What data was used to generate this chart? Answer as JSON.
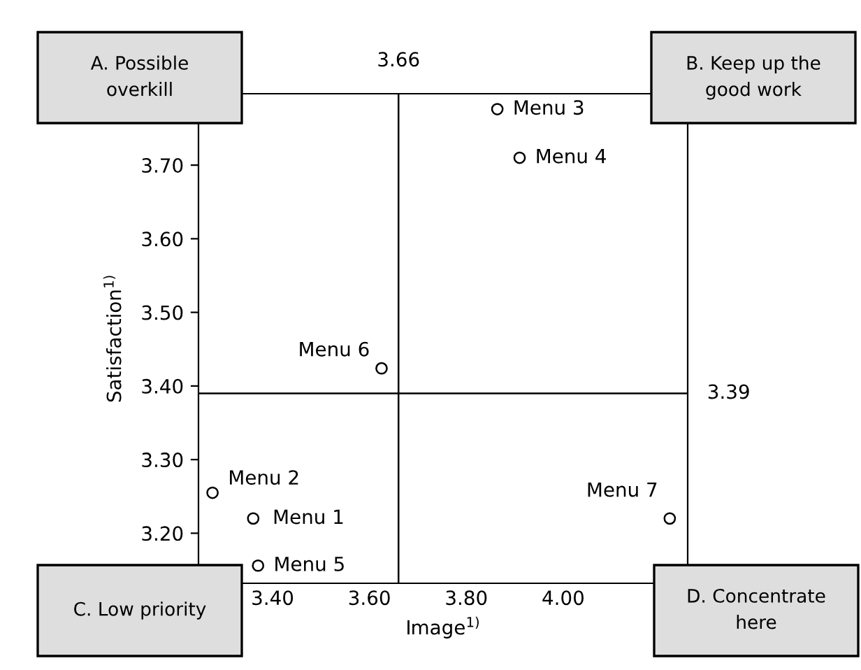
{
  "chart_data": {
    "type": "scatter",
    "xlabel": "Image$^{1)}$",
    "ylabel": "Satisfaction$^{1)}$",
    "x": [
      3.36,
      3.276,
      3.864,
      3.91,
      3.37,
      3.625,
      4.22
    ],
    "values": [
      3.22,
      3.255,
      3.776,
      3.71,
      3.156,
      3.424,
      3.22
    ],
    "color": "#000000",
    "marker": "circle",
    "grid": false,
    "xlim": [
      3.247,
      4.257
    ],
    "ylim": [
      3.132,
      3.797
    ],
    "xticks": [
      {
        "value": 3.4,
        "label": "3.40"
      },
      {
        "value": 3.6,
        "label": "3.60"
      },
      {
        "value": 3.8,
        "label": "3.80"
      },
      {
        "value": 4.0,
        "label": "4.00"
      }
    ],
    "yticks": [
      {
        "value": 3.2,
        "label": "3.20"
      },
      {
        "value": 3.3,
        "label": "3.30"
      },
      {
        "value": 3.4,
        "label": "3.40"
      },
      {
        "value": 3.5,
        "label": "3.50"
      },
      {
        "value": 3.6,
        "label": "3.60"
      },
      {
        "value": 3.7,
        "label": "3.70"
      }
    ],
    "ref_lines": [
      {
        "axis": "x",
        "value": 3.66,
        "label": "3.66",
        "color": "#000000"
      },
      {
        "axis": "y",
        "value": 3.39,
        "label": "3.39",
        "color": "#000000"
      }
    ],
    "annotations": [
      {
        "text": "Menu 1",
        "x": 3.36,
        "y": 3.22
      },
      {
        "text": "Menu 2",
        "x": 3.276,
        "y": 3.255
      },
      {
        "text": "Menu 3",
        "x": 3.864,
        "y": 3.776
      },
      {
        "text": "Menu 4",
        "x": 3.91,
        "y": 3.71
      },
      {
        "text": "Menu 5",
        "x": 3.37,
        "y": 3.156
      },
      {
        "text": "Menu 6",
        "x": 3.625,
        "y": 3.424
      },
      {
        "text": "Menu 7",
        "x": 4.22,
        "y": 3.22
      },
      "A. Possible\noverkill",
      "B. Keep up the\ngood work",
      "C. Low priority",
      "D. Concentrate\nhere"
    ]
  }
}
